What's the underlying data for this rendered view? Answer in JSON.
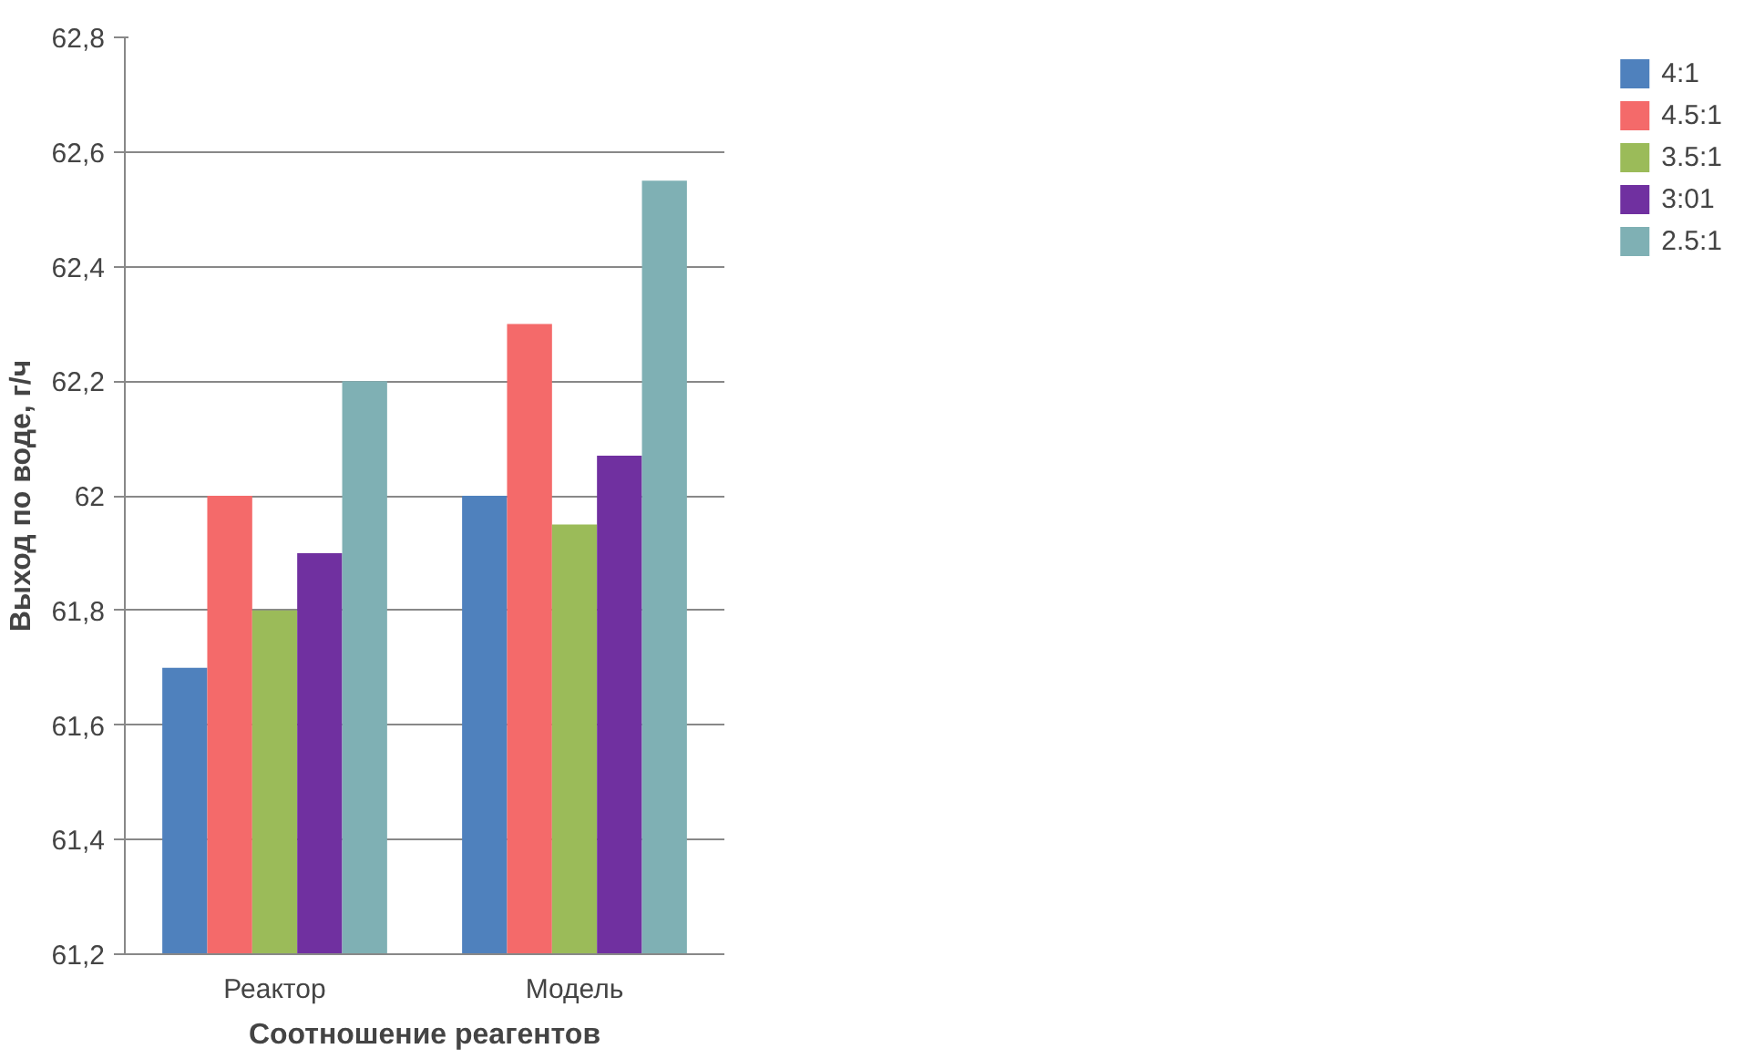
{
  "chart_data": {
    "type": "bar",
    "xlabel": "Соотношение реагентов",
    "ylabel": "Выход по воде, г/ч",
    "categories": [
      "Реактор",
      "Модель"
    ],
    "series": [
      {
        "name": "4:1",
        "color": "#4f81bd",
        "values": [
          61.7,
          62.0
        ]
      },
      {
        "name": "4.5:1",
        "color": "#f46a6a",
        "values": [
          62.0,
          62.3
        ]
      },
      {
        "name": "3.5:1",
        "color": "#9bbb59",
        "values": [
          61.8,
          61.95
        ]
      },
      {
        "name": "3:01",
        "color": "#7030a0",
        "values": [
          61.9,
          62.07
        ]
      },
      {
        "name": "2.5:1",
        "color": "#7fb0b4",
        "values": [
          62.2,
          62.55
        ]
      }
    ],
    "ylim": [
      61.2,
      62.8
    ],
    "yticks": [
      {
        "value": 61.2,
        "label": "61,2"
      },
      {
        "value": 61.4,
        "label": "61,4"
      },
      {
        "value": 61.6,
        "label": "61,6"
      },
      {
        "value": 61.8,
        "label": "61,8"
      },
      {
        "value": 62,
        "label": "62"
      },
      {
        "value": 62.2,
        "label": "62,2"
      },
      {
        "value": 62.4,
        "label": "62,4"
      },
      {
        "value": 62.6,
        "label": "62,6"
      },
      {
        "value": 62.8,
        "label": "62,8"
      }
    ],
    "grid": "y",
    "legend": "right"
  }
}
